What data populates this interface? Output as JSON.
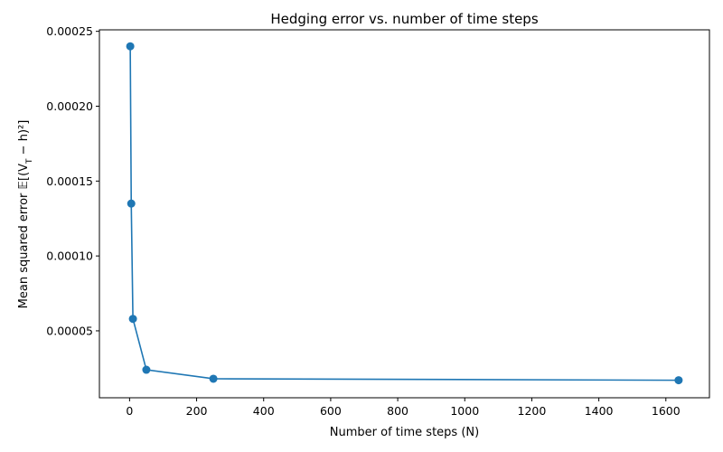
{
  "chart_data": {
    "type": "line",
    "title": "Hedging error vs. number of time steps",
    "xlabel": "Number of time steps (N)",
    "ylabel_prefix": "Mean squared error ",
    "ylabel_formula": "𝔼[(V",
    "ylabel_sub": "T",
    "ylabel_suffix": " − h)²]",
    "xlim": [
      -90,
      1730
    ],
    "ylim": [
      5.3e-06,
      0.000251
    ],
    "x_ticks": [
      0,
      200,
      400,
      600,
      800,
      1000,
      1200,
      1400,
      1600
    ],
    "x_tick_labels": [
      "0",
      "200",
      "400",
      "600",
      "800",
      "1000",
      "1200",
      "1400",
      "1600"
    ],
    "y_ticks": [
      5e-05,
      0.0001,
      0.00015,
      0.0002,
      0.00025
    ],
    "y_tick_labels": [
      "0.00005",
      "0.00010",
      "0.00015",
      "0.00020",
      "0.00025"
    ],
    "grid": false,
    "series": [
      {
        "color": "#1f77b4",
        "marker": "circle",
        "x": [
          2,
          5,
          10,
          50,
          250,
          1638
        ],
        "y": [
          0.00024,
          0.000135,
          5.8e-05,
          2.4e-05,
          1.8e-05,
          1.7e-05
        ]
      }
    ]
  }
}
